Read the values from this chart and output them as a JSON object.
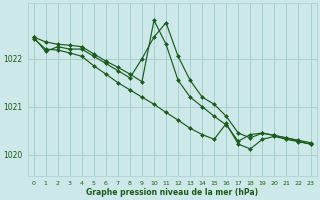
{
  "background_color": "#cce8e8",
  "grid_color": "#aacece",
  "line_color": "#1a5c1a",
  "marker_color": "#1a5c1a",
  "xlabel": "Graphe pression niveau de la mer (hPa)",
  "xlabel_color": "#1a5c1a",
  "ylim": [
    1019.55,
    1023.15
  ],
  "xlim": [
    -0.5,
    23.5
  ],
  "yticks": [
    1020,
    1021,
    1022
  ],
  "xticks": [
    0,
    1,
    2,
    3,
    4,
    5,
    6,
    7,
    8,
    9,
    10,
    11,
    12,
    13,
    14,
    15,
    16,
    17,
    18,
    19,
    20,
    21,
    22,
    23
  ],
  "series": [
    {
      "x": [
        0,
        1,
        2,
        3,
        4,
        5,
        6,
        7,
        8,
        9,
        10,
        11,
        12,
        13,
        14,
        15,
        16,
        17,
        18,
        19,
        20,
        21,
        22,
        23
      ],
      "y": [
        1022.45,
        1022.15,
        1022.25,
        1022.2,
        1022.2,
        1022.05,
        1021.9,
        1021.75,
        1021.6,
        1022.0,
        1022.45,
        1022.75,
        1022.05,
        1021.55,
        1021.2,
        1021.05,
        1020.8,
        1020.45,
        1020.35,
        1020.45,
        1020.4,
        1020.35,
        1020.3,
        1020.25
      ]
    },
    {
      "x": [
        0,
        1,
        2,
        3,
        4,
        5,
        6,
        7,
        8,
        9,
        10,
        11,
        12,
        13,
        14,
        15,
        16,
        17,
        18,
        19,
        20,
        21,
        22,
        23
      ],
      "y": [
        1022.45,
        1022.35,
        1022.3,
        1022.28,
        1022.25,
        1022.1,
        1021.95,
        1021.82,
        1021.68,
        1021.52,
        1022.8,
        1022.3,
        1021.55,
        1021.2,
        1021.0,
        1020.8,
        1020.62,
        1020.28,
        1020.42,
        1020.45,
        1020.4,
        1020.35,
        1020.28,
        1020.22
      ]
    },
    {
      "x": [
        0,
        1,
        2,
        3,
        4,
        5,
        6,
        7,
        8,
        9,
        10,
        11,
        12,
        13,
        14,
        15,
        16,
        17,
        18,
        19,
        20,
        21,
        22,
        23
      ],
      "y": [
        1022.42,
        1022.2,
        1022.18,
        1022.12,
        1022.05,
        1021.85,
        1021.68,
        1021.5,
        1021.35,
        1021.2,
        1021.05,
        1020.88,
        1020.72,
        1020.55,
        1020.42,
        1020.32,
        1020.65,
        1020.22,
        1020.12,
        1020.32,
        1020.38,
        1020.32,
        1020.27,
        1020.22
      ]
    }
  ]
}
